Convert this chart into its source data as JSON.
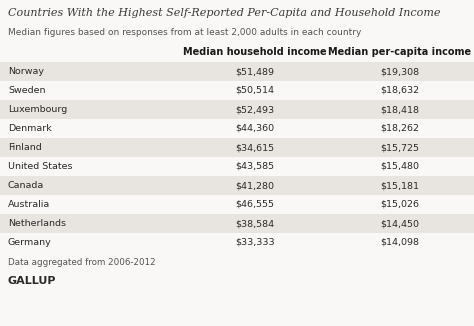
{
  "title": "Countries With the Highest Self-Reported Per-Capita and Household Income",
  "subtitle": "Median figures based on responses from at least 2,000 adults in each country",
  "col1_header": "Median household income",
  "col2_header": "Median per-capita income",
  "countries": [
    "Norway",
    "Sweden",
    "Luxembourg",
    "Denmark",
    "Finland",
    "United States",
    "Canada",
    "Australia",
    "Netherlands",
    "Germany"
  ],
  "household_income": [
    "$51,489",
    "$50,514",
    "$52,493",
    "$44,360",
    "$34,615",
    "$43,585",
    "$41,280",
    "$46,555",
    "$38,584",
    "$33,333"
  ],
  "percapita_income": [
    "$19,308",
    "$18,632",
    "$18,418",
    "$18,262",
    "$15,725",
    "$15,480",
    "$15,181",
    "$15,026",
    "$14,450",
    "$14,098"
  ],
  "footer": "Data aggregated from 2006-2012",
  "brand": "GALLUP",
  "bg_color": "#f9f8f6",
  "row_shaded_color": "#e8e5e0",
  "row_unshaded_color": "#f9f8f6",
  "title_color": "#3a3a3a",
  "subtitle_color": "#555555",
  "header_color": "#1a1a1a",
  "data_color": "#2a2a2a",
  "footer_color": "#555555",
  "brand_color": "#2a2a2a",
  "title_fontsize": 8.0,
  "subtitle_fontsize": 6.5,
  "header_fontsize": 7.0,
  "data_fontsize": 6.8,
  "footer_fontsize": 6.3,
  "brand_fontsize": 8.0
}
